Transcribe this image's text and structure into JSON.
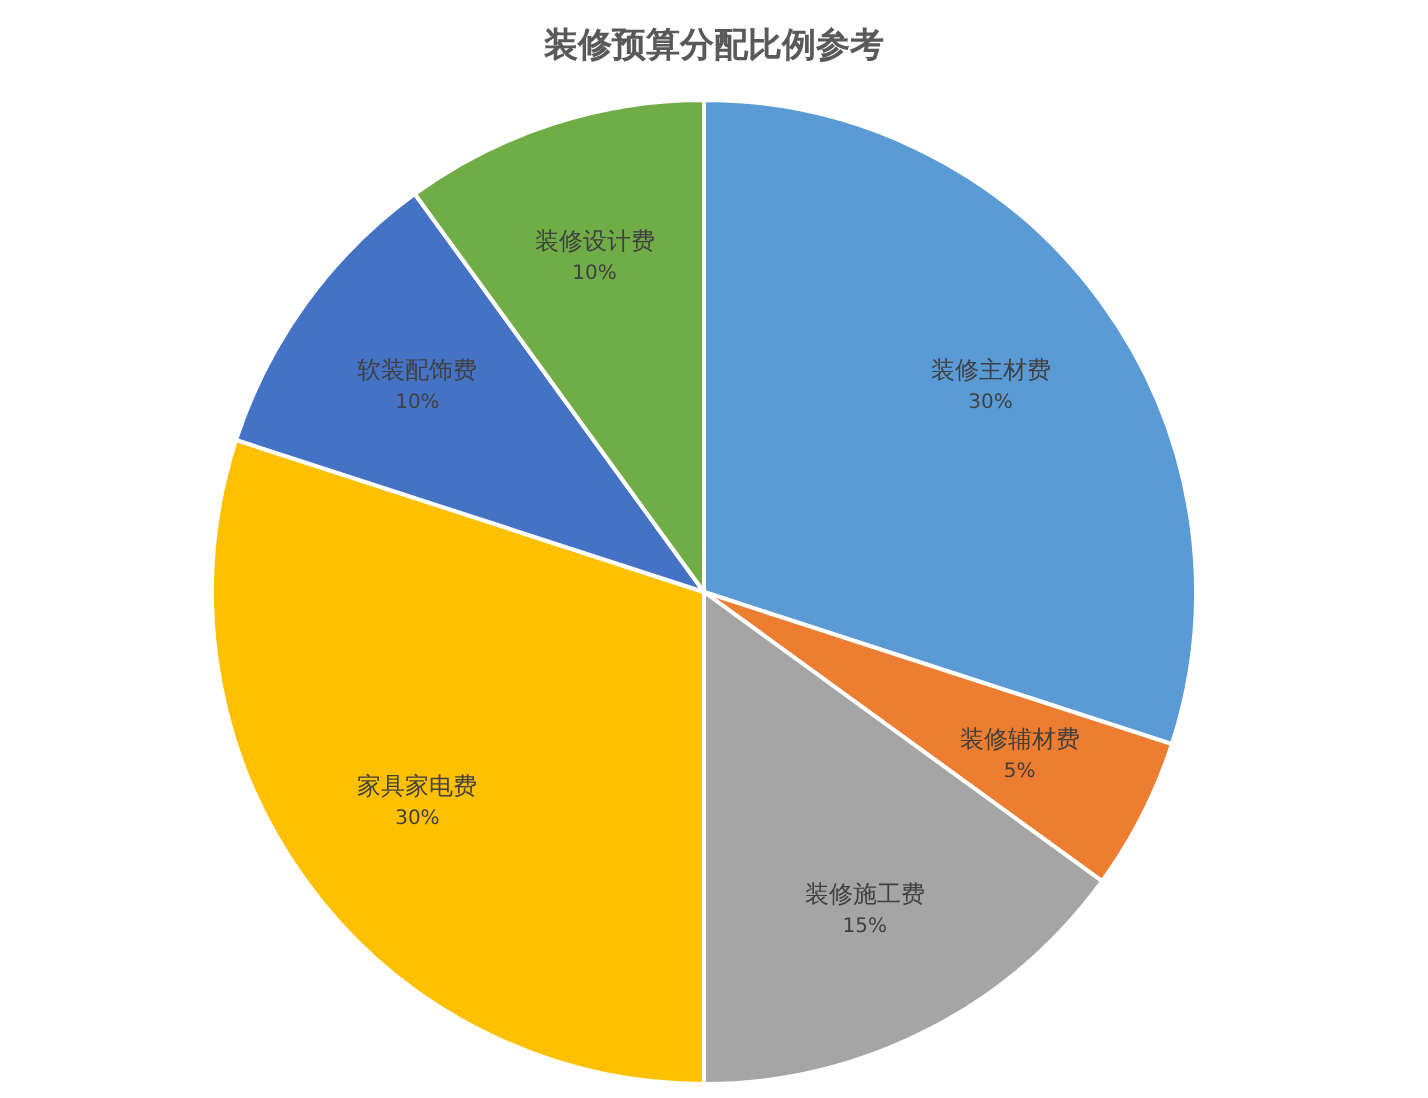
{
  "chart_data": {
    "type": "pie",
    "title": "装修预算分配比例参考",
    "categories": [
      "装修主材费",
      "装修辅材费",
      "装修施工费",
      "家具家电费",
      "软装配饰费",
      "装修设计费"
    ],
    "values": [
      30,
      5,
      15,
      30,
      10,
      10
    ],
    "colors": [
      "#5b9bd5",
      "#ed7d31",
      "#a5a5a5",
      "#ffc000",
      "#4472c4",
      "#70ad47"
    ],
    "value_labels": [
      "30%",
      "5%",
      "15%",
      "30%",
      "10%",
      "10%"
    ]
  }
}
